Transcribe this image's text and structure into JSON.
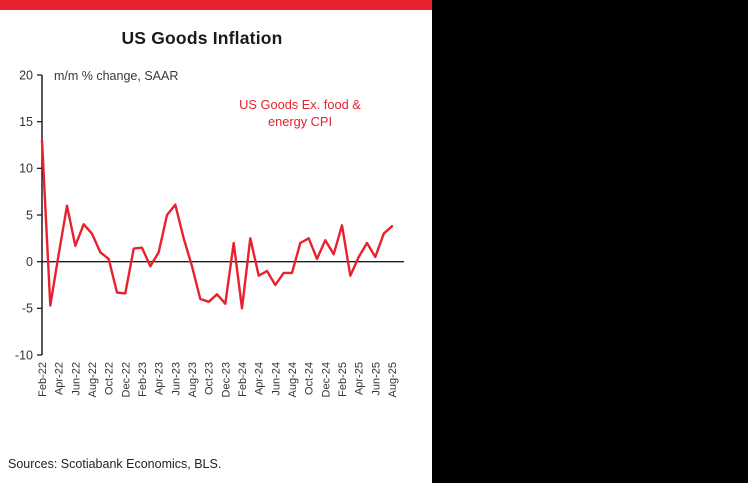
{
  "page": {
    "title": "US Goods Inflation",
    "note": "m/m % change, SAAR",
    "annotation": {
      "line1": "US Goods Ex. food &",
      "line2": "energy CPI"
    },
    "source": "Sources: Scotiabank Economics, BLS."
  },
  "colors": {
    "accent_red": "#e8212e",
    "axis": "#231f20",
    "tick_text": "#333333",
    "panel_bg": "#ffffff",
    "side_bg": "#000000"
  },
  "chart_data": {
    "type": "line",
    "title": "US Goods Inflation",
    "subtitle_note": "m/m % change, SAAR",
    "series": [
      {
        "name": "US Goods Ex. food & energy CPI",
        "color": "#e8212e",
        "values": [
          13.0,
          -4.7,
          0.8,
          6.0,
          1.7,
          4.0,
          3.0,
          1.0,
          0.3,
          -3.3,
          -3.4,
          1.4,
          1.5,
          -0.5,
          1.0,
          5.0,
          6.1,
          2.5,
          -0.5,
          -4.0,
          -4.3,
          -3.5,
          -4.5,
          2.0,
          -5.0,
          2.5,
          -1.5,
          -1.0,
          -2.5,
          -1.2,
          -1.2,
          2.0,
          2.5,
          0.3,
          2.3,
          0.8,
          3.9,
          -1.5,
          0.5,
          2.0,
          0.5,
          3.0,
          3.8
        ]
      }
    ],
    "x": [
      "Feb-22",
      "Mar-22",
      "Apr-22",
      "May-22",
      "Jun-22",
      "Jul-22",
      "Aug-22",
      "Sep-22",
      "Oct-22",
      "Nov-22",
      "Dec-22",
      "Jan-23",
      "Feb-23",
      "Mar-23",
      "Apr-23",
      "May-23",
      "Jun-23",
      "Jul-23",
      "Aug-23",
      "Sep-23",
      "Oct-23",
      "Nov-23",
      "Dec-23",
      "Jan-24",
      "Feb-24",
      "Mar-24",
      "Apr-24",
      "May-24",
      "Jun-24",
      "Jul-24",
      "Aug-24",
      "Sep-24",
      "Oct-24",
      "Nov-24",
      "Dec-24",
      "Jan-25",
      "Feb-25",
      "Mar-25",
      "Apr-25",
      "May-25",
      "Jun-25",
      "Jul-25",
      "Aug-25"
    ],
    "x_tick_every": 2,
    "ylim": [
      -10,
      20
    ],
    "yticks": [
      20,
      15,
      10,
      5,
      0,
      -5,
      -10
    ],
    "zero_line": true,
    "grid": false,
    "legend_position": "none"
  }
}
